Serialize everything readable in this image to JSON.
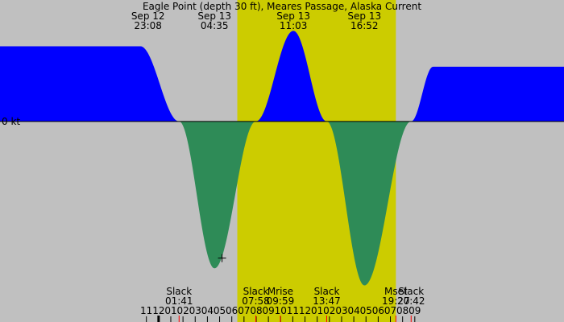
{
  "chart_data": {
    "type": "area",
    "title": "Eagle Point (depth 30 ft), Meares Passage, Alaska Current",
    "zero_label": "0 kt",
    "colors": {
      "night": "#c0c0c0",
      "day": "#cccc00",
      "flood": "#0000ff",
      "ebb": "#2e8b57",
      "tick_red": "#ff0000",
      "text": "#000000"
    },
    "x_range_hours": [
      -13.0,
      33.23
    ],
    "y_range_kt": [
      -5.4,
      3.2
    ],
    "daylight_hours": [
      6.45,
      19.45
    ],
    "top_labels": [
      {
        "date": "Sep 12",
        "time": "23:08",
        "hour": -0.87
      },
      {
        "date": "Sep 13",
        "time": "04:35",
        "hour": 4.58
      },
      {
        "date": "Sep 13",
        "time": "11:03",
        "hour": 11.05
      },
      {
        "date": "Sep 13",
        "time": "16:52",
        "hour": 16.87
      }
    ],
    "events": [
      {
        "label": "Slack",
        "time": "01:41",
        "hour": 1.68
      },
      {
        "label": "Slack",
        "time": "07:58",
        "hour": 7.97
      },
      {
        "label": "Mrise",
        "time": "09:59",
        "hour": 9.98
      },
      {
        "label": "Slack",
        "time": "13:47",
        "hour": 13.78
      },
      {
        "label": "Mset",
        "time": "19:27",
        "hour": 19.45
      },
      {
        "label": "Slack",
        "time": "20:42",
        "hour": 20.7
      }
    ],
    "curve_points": [
      [
        -1.5,
        2.2
      ],
      [
        1.68,
        0
      ],
      [
        4.58,
        -4.3
      ],
      [
        7.97,
        0
      ],
      [
        11.05,
        2.65
      ],
      [
        13.78,
        0
      ],
      [
        16.87,
        -4.8
      ],
      [
        20.7,
        0
      ],
      [
        22.5,
        1.6
      ]
    ],
    "hour_ticks": [
      "11",
      "12",
      "01",
      "02",
      "03",
      "04",
      "05",
      "06",
      "07",
      "08",
      "09",
      "10",
      "11",
      "12",
      "01",
      "02",
      "03",
      "04",
      "05",
      "06",
      "07",
      "08",
      "09"
    ],
    "hour_tick_start": -1,
    "red_tick_hours": [
      1.68,
      7.97,
      9.98,
      13.78,
      19.45,
      20.7
    ],
    "midnight_hour": 0,
    "cursor_marker": {
      "hour": 5.2,
      "value": -4.0
    }
  }
}
